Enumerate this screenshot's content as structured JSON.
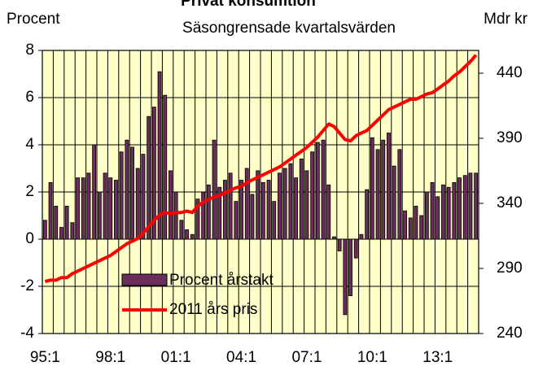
{
  "chart_data": {
    "type": "bar_line",
    "title": "Privat konsumtion",
    "subtitle": "Säsongrensade kvartalsvärden",
    "y_label": "Procent",
    "y2_label": "Mdr kr",
    "categories": [
      "95:1",
      null,
      null,
      null,
      null,
      null,
      null,
      null,
      null,
      null,
      null,
      null,
      "98:1",
      null,
      null,
      null,
      null,
      null,
      null,
      null,
      null,
      null,
      null,
      null,
      "01:1",
      null,
      null,
      null,
      null,
      null,
      null,
      null,
      null,
      null,
      null,
      null,
      "04:1",
      null,
      null,
      null,
      null,
      null,
      null,
      null,
      null,
      null,
      null,
      null,
      "07:1",
      null,
      null,
      null,
      null,
      null,
      null,
      null,
      null,
      null,
      null,
      null,
      "10:1",
      null,
      null,
      null,
      null,
      null,
      null,
      null,
      null,
      null,
      null,
      null,
      "13:1",
      null,
      null,
      null,
      null,
      null,
      null,
      null
    ],
    "series": [
      {
        "name": "Procent årstakt",
        "color": "#6b2d5c",
        "values": [
          0.8,
          2.4,
          1.4,
          0.5,
          1.4,
          0.7,
          2.6,
          2.6,
          2.8,
          4.0,
          2.0,
          2.8,
          2.6,
          2.5,
          3.7,
          4.2,
          3.9,
          3.0,
          3.6,
          5.2,
          5.6,
          7.1,
          6.1,
          2.9,
          2.0,
          0.8,
          0.4,
          0.2,
          1.7,
          2.0,
          2.3,
          4.2,
          2.2,
          2.5,
          2.8,
          1.6,
          2.5,
          3.0,
          1.9,
          2.9,
          2.4,
          2.5,
          1.6,
          2.8,
          3.0,
          3.2,
          2.6,
          3.4,
          2.9,
          3.7,
          4.1,
          4.2,
          2.3,
          0.1,
          -0.5,
          -3.2,
          -2.4,
          -0.8,
          0.2,
          2.1,
          4.3,
          3.8,
          4.2,
          4.5,
          3.1,
          3.8,
          1.2,
          0.9,
          1.4,
          1.0,
          2.0,
          2.4,
          1.8,
          2.3,
          2.2,
          2.4,
          2.6,
          2.7,
          2.8,
          2.8
        ]
      },
      {
        "name": "2011 års pris",
        "color": "#ff0000",
        "axis": "y2",
        "values": [
          280,
          281,
          281,
          283,
          283,
          286,
          288,
          290,
          292,
          294,
          296,
          298,
          300,
          303,
          306,
          309,
          311,
          313,
          317,
          322,
          327,
          331,
          333,
          332,
          333,
          333,
          334,
          333,
          338,
          341,
          343,
          345,
          346,
          348,
          350,
          352,
          353,
          356,
          358,
          360,
          362,
          364,
          366,
          368,
          371,
          374,
          377,
          380,
          383,
          387,
          391,
          396,
          401,
          399,
          394,
          389,
          388,
          392,
          394,
          396,
          400,
          404,
          408,
          412,
          414,
          416,
          418,
          420,
          420,
          422,
          424,
          425,
          428,
          431,
          434,
          438,
          441,
          445,
          449,
          454
        ]
      }
    ],
    "ylim": [
      -4,
      8
    ],
    "yticks": [
      -4,
      -2,
      0,
      2,
      4,
      6,
      8
    ],
    "y2lim": [
      240,
      457.5
    ],
    "y2ticks": [
      240,
      290,
      340,
      390,
      440
    ],
    "y2_color": "#ff0000",
    "background": "#ffffc8",
    "grid": true
  }
}
